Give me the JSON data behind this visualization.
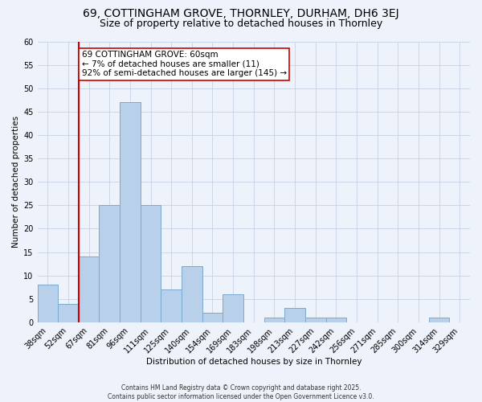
{
  "title1": "69, COTTINGHAM GROVE, THORNLEY, DURHAM, DH6 3EJ",
  "title2": "Size of property relative to detached houses in Thornley",
  "xlabel": "Distribution of detached houses by size in Thornley",
  "ylabel": "Number of detached properties",
  "categories": [
    "38sqm",
    "52sqm",
    "67sqm",
    "81sqm",
    "96sqm",
    "111sqm",
    "125sqm",
    "140sqm",
    "154sqm",
    "169sqm",
    "183sqm",
    "198sqm",
    "213sqm",
    "227sqm",
    "242sqm",
    "256sqm",
    "271sqm",
    "285sqm",
    "300sqm",
    "314sqm",
    "329sqm"
  ],
  "values": [
    8,
    4,
    14,
    25,
    47,
    25,
    7,
    12,
    2,
    6,
    0,
    1,
    3,
    1,
    1,
    0,
    0,
    0,
    0,
    1,
    0
  ],
  "bar_color": "#b8d0ea",
  "bar_edge_color": "#7aaad0",
  "vline_color": "#cc0000",
  "annotation_text": "69 COTTINGHAM GROVE: 60sqm\n← 7% of detached houses are smaller (11)\n92% of semi-detached houses are larger (145) →",
  "annotation_box_color": "#ffffff",
  "annotation_box_edge": "#cc0000",
  "ylim": [
    0,
    60
  ],
  "yticks": [
    0,
    5,
    10,
    15,
    20,
    25,
    30,
    35,
    40,
    45,
    50,
    55,
    60
  ],
  "background_color": "#eef2fa",
  "footer": "Contains HM Land Registry data © Crown copyright and database right 2025.\nContains public sector information licensed under the Open Government Licence v3.0.",
  "title_fontsize": 10,
  "subtitle_fontsize": 9,
  "axis_label_fontsize": 7.5,
  "tick_fontsize": 7,
  "annotation_fontsize": 7.5,
  "footer_fontsize": 5.5
}
